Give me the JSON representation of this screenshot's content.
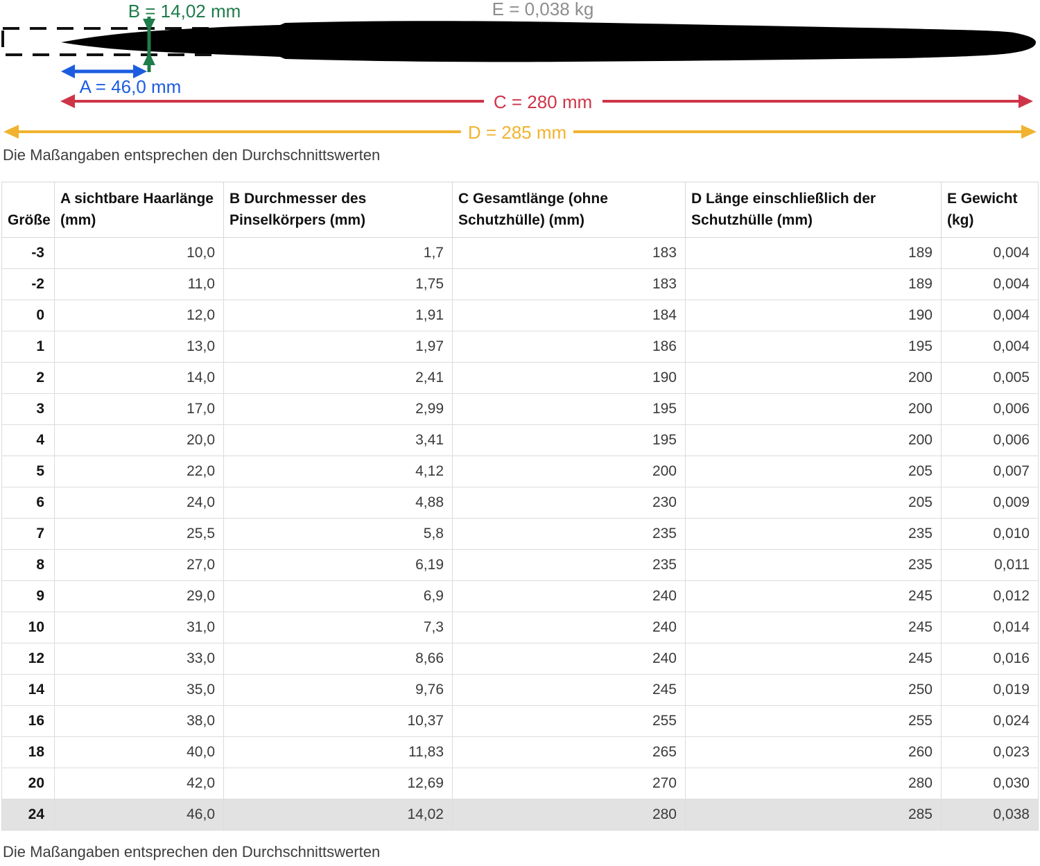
{
  "diagram": {
    "labels": {
      "b": "B = 14,02 mm",
      "e": "E = 0,038 kg",
      "a": "A = 46,0 mm",
      "c": "C = 280 mm",
      "d": "D = 285 mm"
    },
    "colors": {
      "a_blue": "#1c5ce0",
      "b_green": "#1f7c4b",
      "c_red": "#ce3448",
      "d_yellow": "#f1b32f",
      "e_gray": "#8d8d8d",
      "brush": "#000000"
    },
    "note": "Die Maßangaben entsprechen den Durchschnittswerten"
  },
  "table": {
    "columns": [
      {
        "label": "Größe"
      },
      {
        "label": "A sichtbare Haarlänge\n(mm)"
      },
      {
        "label": "B Durchmesser des\nPinselkörpers (mm)"
      },
      {
        "label": "C Gesamtlänge (ohne\nSchutzhülle) (mm)"
      },
      {
        "label": "D Länge einschließlich der\nSchutzhülle (mm)"
      },
      {
        "label": "E Gewicht\n(kg)"
      }
    ],
    "rows": [
      [
        "-3",
        "10,0",
        "1,7",
        "183",
        "189",
        "0,004"
      ],
      [
        "-2",
        "11,0",
        "1,75",
        "183",
        "189",
        "0,004"
      ],
      [
        "0",
        "12,0",
        "1,91",
        "184",
        "190",
        "0,004"
      ],
      [
        "1",
        "13,0",
        "1,97",
        "186",
        "195",
        "0,004"
      ],
      [
        "2",
        "14,0",
        "2,41",
        "190",
        "200",
        "0,005"
      ],
      [
        "3",
        "17,0",
        "2,99",
        "195",
        "200",
        "0,006"
      ],
      [
        "4",
        "20,0",
        "3,41",
        "195",
        "200",
        "0,006"
      ],
      [
        "5",
        "22,0",
        "4,12",
        "200",
        "205",
        "0,007"
      ],
      [
        "6",
        "24,0",
        "4,88",
        "230",
        "205",
        "0,009"
      ],
      [
        "7",
        "25,5",
        "5,8",
        "235",
        "235",
        "0,010"
      ],
      [
        "8",
        "27,0",
        "6,19",
        "235",
        "235",
        "0,011"
      ],
      [
        "9",
        "29,0",
        "6,9",
        "240",
        "245",
        "0,012"
      ],
      [
        "10",
        "31,0",
        "7,3",
        "240",
        "245",
        "0,014"
      ],
      [
        "12",
        "33,0",
        "8,66",
        "240",
        "245",
        "0,016"
      ],
      [
        "14",
        "35,0",
        "9,76",
        "245",
        "250",
        "0,019"
      ],
      [
        "16",
        "38,0",
        "10,37",
        "255",
        "255",
        "0,024"
      ],
      [
        "18",
        "40,0",
        "11,83",
        "265",
        "260",
        "0,023"
      ],
      [
        "20",
        "42,0",
        "12,69",
        "270",
        "280",
        "0,030"
      ],
      [
        "24",
        "46,0",
        "14,02",
        "280",
        "285",
        "0,038"
      ]
    ],
    "highlighted_row": "24"
  },
  "footer": {
    "note": "Die Maßangaben entsprechen den Durchschnittswerten"
  }
}
